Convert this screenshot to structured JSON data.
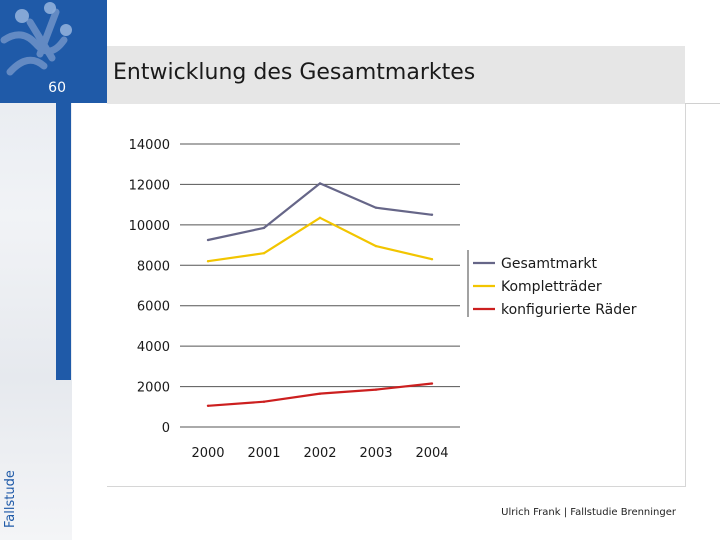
{
  "slide": {
    "page_number": "60",
    "vertical_label": "Fallstude",
    "title": "Entwicklung des Gesamtmarktes",
    "footer": "Ulrich Frank | Fallstudie Brenninger"
  },
  "colors": {
    "accent_blue": "#1f5aa8",
    "title_bar": "#e6e6e6"
  },
  "chart_data": {
    "type": "line",
    "title": "",
    "xlabel": "",
    "ylabel": "",
    "categories": [
      "2000",
      "2001",
      "2002",
      "2003",
      "2004"
    ],
    "ylim": [
      0,
      14000
    ],
    "yticks": [
      0,
      2000,
      4000,
      6000,
      8000,
      10000,
      12000,
      14000
    ],
    "ytick_labels": [
      "0",
      "2000",
      "4000",
      "6000",
      "8000",
      "10000",
      "12000",
      "14000"
    ],
    "grid": "horizontal",
    "legend_position": "right",
    "series": [
      {
        "name": "Gesamtmarkt",
        "color": "#666688",
        "values": [
          9250,
          9850,
          12050,
          10850,
          10500
        ]
      },
      {
        "name": "Kompletträder",
        "color": "#f2c500",
        "values": [
          8200,
          8600,
          10350,
          8950,
          8300
        ]
      },
      {
        "name": "konfigurierte Räder",
        "color": "#cc1f1f",
        "values": [
          1050,
          1250,
          1650,
          1850,
          2150
        ]
      }
    ]
  }
}
